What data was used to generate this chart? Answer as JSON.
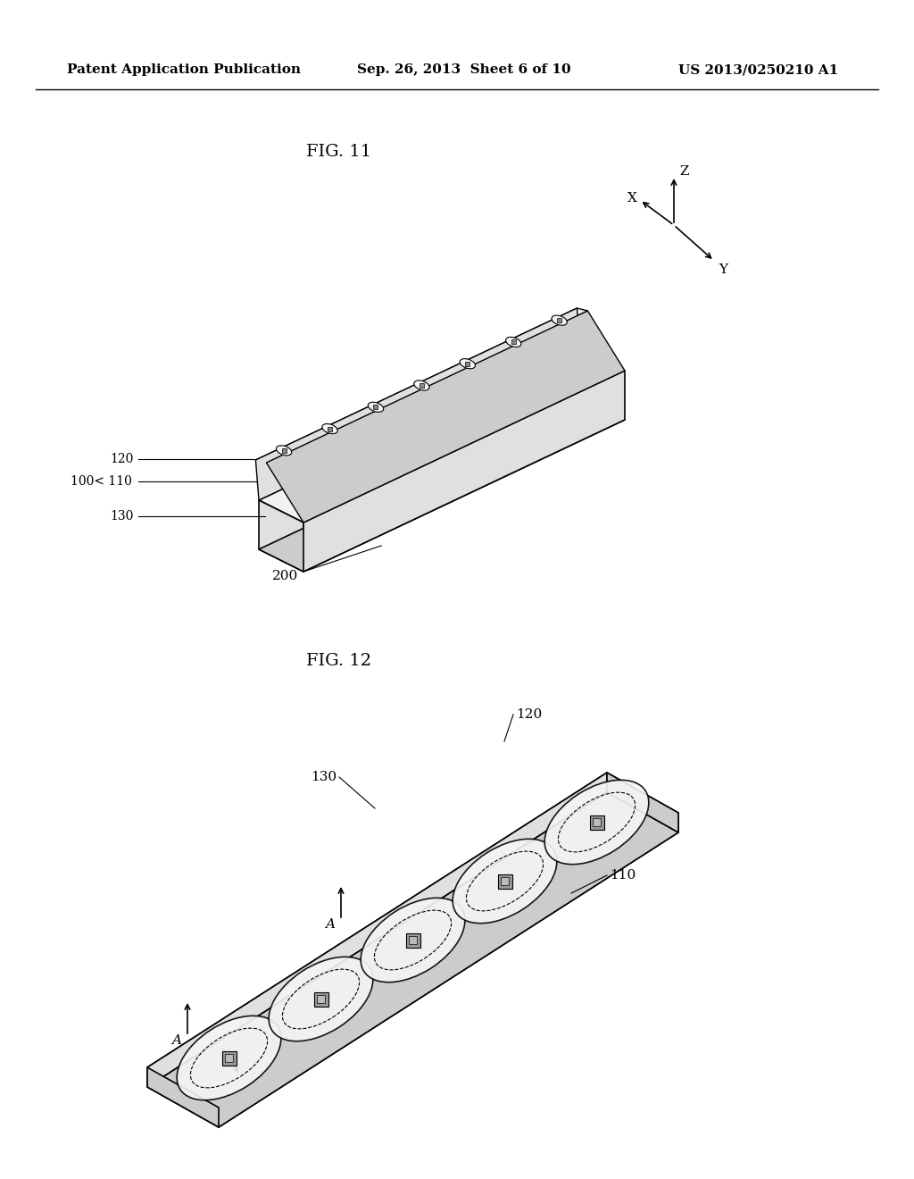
{
  "bg_color": "#ffffff",
  "header_left": "Patent Application Publication",
  "header_center": "Sep. 26, 2013  Sheet 6 of 10",
  "header_right": "US 2013/0250210 A1",
  "fig11_title": "FIG. 11",
  "fig12_title": "FIG. 12",
  "label_100": "100",
  "label_110_fig11": "110",
  "label_120_fig11": "120",
  "label_130_fig11": "130",
  "label_200": "200",
  "label_110_fig12": "110",
  "label_120_fig12": "120",
  "label_130_fig12": "130",
  "label_A": "A",
  "axis_X": "X",
  "axis_Y": "Y",
  "axis_Z": "Z",
  "line_color": "#000000",
  "face_color_light": "#f2f2f2",
  "face_color_mid": "#e0e0e0",
  "face_color_dark": "#cccccc"
}
